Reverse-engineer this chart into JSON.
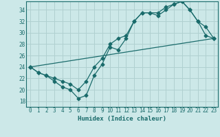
{
  "xlabel": "Humidex (Indice chaleur)",
  "background_color": "#cce8e8",
  "grid_color": "#b0d0d0",
  "line_color": "#1a6b6b",
  "xlim": [
    -0.5,
    23.5
  ],
  "ylim": [
    17,
    35.5
  ],
  "yticks": [
    18,
    20,
    22,
    24,
    26,
    28,
    30,
    32,
    34
  ],
  "xticks": [
    0,
    1,
    2,
    3,
    4,
    5,
    6,
    7,
    8,
    9,
    10,
    11,
    12,
    13,
    14,
    15,
    16,
    17,
    18,
    19,
    20,
    21,
    22,
    23
  ],
  "series1": {
    "x": [
      0,
      1,
      2,
      3,
      4,
      5,
      6,
      7,
      8,
      9,
      10,
      11,
      12,
      13,
      14,
      15,
      16,
      17,
      18,
      19,
      20,
      21,
      22,
      23
    ],
    "y": [
      24,
      23,
      22.5,
      21.5,
      20.5,
      20,
      18.5,
      19,
      22.5,
      24.5,
      27.5,
      27,
      29,
      32,
      33.5,
      33.5,
      33,
      34,
      35,
      35.5,
      34,
      32,
      29.5,
      29
    ]
  },
  "series2": {
    "x": [
      0,
      1,
      2,
      3,
      4,
      5,
      6,
      7,
      8,
      9,
      10,
      11,
      12,
      13,
      14,
      15,
      16,
      17,
      18,
      19,
      20,
      21,
      22,
      23
    ],
    "y": [
      24,
      23,
      22.5,
      22,
      21.5,
      21,
      20,
      21.5,
      24,
      25.5,
      28,
      29,
      29.5,
      32,
      33.5,
      33.5,
      33.5,
      34.5,
      35,
      35.5,
      34,
      32,
      31,
      29
    ]
  },
  "series3": {
    "x": [
      0,
      23
    ],
    "y": [
      24,
      29
    ]
  }
}
